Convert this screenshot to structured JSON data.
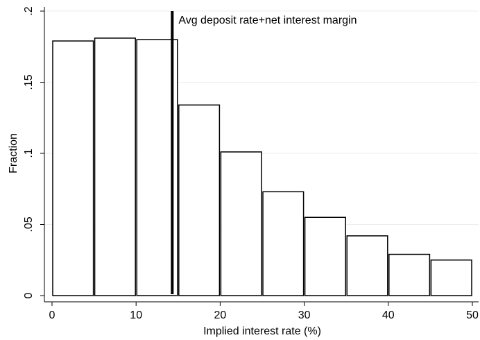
{
  "chart_data": {
    "type": "bar",
    "title": "",
    "xlabel": "Implied interest rate (%)",
    "ylabel": "Fraction",
    "xlim": [
      0,
      50
    ],
    "ylim": [
      0,
      0.2
    ],
    "xticks": [
      0,
      10,
      20,
      30,
      40,
      50
    ],
    "xtick_labels": [
      "0",
      "10",
      "20",
      "30",
      "40",
      "50"
    ],
    "yticks": [
      0,
      0.05,
      0.1,
      0.15,
      0.2
    ],
    "ytick_labels": [
      "0",
      ".05",
      ".1",
      ".15",
      ".2"
    ],
    "bins": [
      {
        "x0": 0,
        "x1": 5,
        "value": 0.179
      },
      {
        "x0": 5,
        "x1": 10,
        "value": 0.181
      },
      {
        "x0": 10,
        "x1": 15,
        "value": 0.18
      },
      {
        "x0": 15,
        "x1": 20,
        "value": 0.134
      },
      {
        "x0": 20,
        "x1": 25,
        "value": 0.101
      },
      {
        "x0": 25,
        "x1": 30,
        "value": 0.073
      },
      {
        "x0": 30,
        "x1": 35,
        "value": 0.055
      },
      {
        "x0": 35,
        "x1": 40,
        "value": 0.042
      },
      {
        "x0": 40,
        "x1": 45,
        "value": 0.029
      },
      {
        "x0": 45,
        "x1": 50,
        "value": 0.025
      }
    ],
    "reference_line": {
      "x": 14.3,
      "y_from": 0.001,
      "y_to": 0.2,
      "label": "Avg deposit rate+net interest margin"
    },
    "grid": true,
    "legend": "none",
    "colors": {
      "bar_fill": "#ffffff",
      "bar_stroke": "#000000",
      "grid": "#e8eef2",
      "reference_line": "#000000"
    }
  }
}
